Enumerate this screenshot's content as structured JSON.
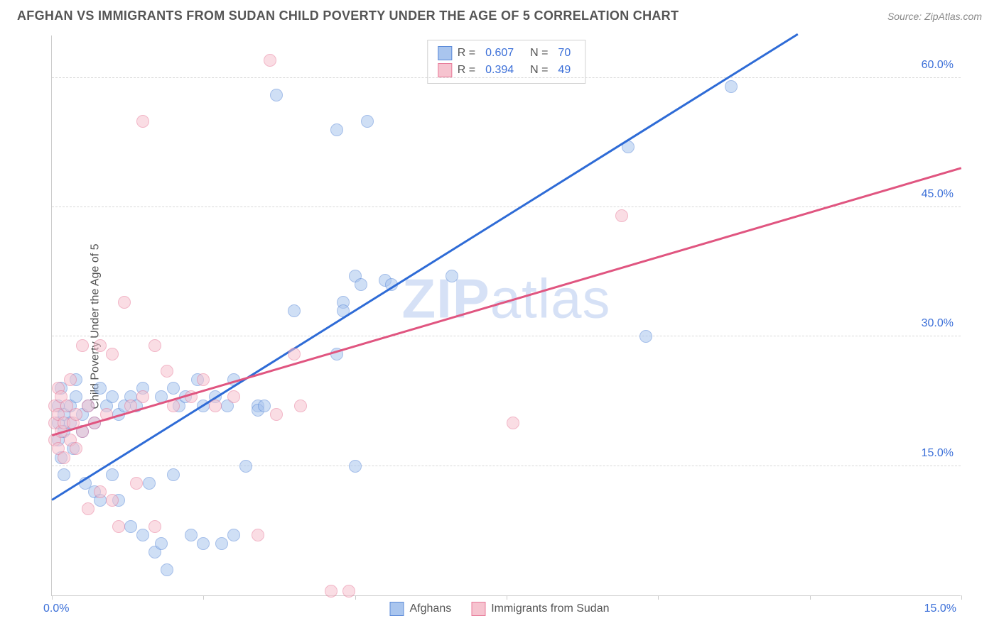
{
  "title": "AFGHAN VS IMMIGRANTS FROM SUDAN CHILD POVERTY UNDER THE AGE OF 5 CORRELATION CHART",
  "source": "Source: ZipAtlas.com",
  "ylabel": "Child Poverty Under the Age of 5",
  "watermark_bold": "ZIP",
  "watermark_light": "atlas",
  "chart": {
    "type": "scatter",
    "background_color": "#ffffff",
    "grid_color": "#d8d8d8",
    "axis_color": "#cccccc",
    "text_color": "#555555",
    "value_color": "#3b6fd8",
    "xlim": [
      0,
      15
    ],
    "ylim": [
      0,
      65
    ],
    "xticks": [
      0,
      2.5,
      5,
      7.5,
      10,
      12.5,
      15
    ],
    "xtick_labels": [
      "0.0%",
      "",
      "",
      "",
      "",
      "",
      "15.0%"
    ],
    "yticks": [
      15,
      30,
      45,
      60
    ],
    "ytick_labels": [
      "15.0%",
      "30.0%",
      "45.0%",
      "60.0%"
    ],
    "point_radius": 9,
    "point_opacity": 0.55,
    "line_width": 2.5
  },
  "series": [
    {
      "name": "Afghans",
      "fill_color": "#a9c5ee",
      "stroke_color": "#5b8ad8",
      "line_color": "#2e6bd6",
      "R": "0.607",
      "N": "70",
      "trend": {
        "x1": 0,
        "y1": 11.0,
        "x2": 12.3,
        "y2": 65.0
      },
      "points": [
        [
          0.1,
          18
        ],
        [
          0.1,
          20
        ],
        [
          0.1,
          22
        ],
        [
          0.15,
          16
        ],
        [
          0.15,
          24
        ],
        [
          0.2,
          19
        ],
        [
          0.2,
          21
        ],
        [
          0.2,
          14
        ],
        [
          0.3,
          20
        ],
        [
          0.3,
          22
        ],
        [
          0.35,
          17
        ],
        [
          0.4,
          23
        ],
        [
          0.4,
          25
        ],
        [
          0.5,
          19
        ],
        [
          0.5,
          21
        ],
        [
          0.55,
          13
        ],
        [
          0.6,
          22
        ],
        [
          0.7,
          20
        ],
        [
          0.7,
          12
        ],
        [
          0.8,
          11
        ],
        [
          0.8,
          24
        ],
        [
          0.9,
          22
        ],
        [
          1.0,
          23
        ],
        [
          1.0,
          14
        ],
        [
          1.1,
          21
        ],
        [
          1.1,
          11
        ],
        [
          1.2,
          22
        ],
        [
          1.3,
          23
        ],
        [
          1.3,
          8
        ],
        [
          1.4,
          22
        ],
        [
          1.5,
          24
        ],
        [
          1.5,
          7
        ],
        [
          1.6,
          13
        ],
        [
          1.7,
          5
        ],
        [
          1.8,
          23
        ],
        [
          1.8,
          6
        ],
        [
          1.9,
          3
        ],
        [
          2.0,
          24
        ],
        [
          2.0,
          14
        ],
        [
          2.1,
          22
        ],
        [
          2.2,
          23
        ],
        [
          2.3,
          7
        ],
        [
          2.4,
          25
        ],
        [
          2.5,
          22
        ],
        [
          2.5,
          6
        ],
        [
          2.7,
          23
        ],
        [
          2.8,
          6
        ],
        [
          2.9,
          22
        ],
        [
          3.0,
          25
        ],
        [
          3.0,
          7
        ],
        [
          3.2,
          15
        ],
        [
          3.4,
          22
        ],
        [
          3.4,
          21.5
        ],
        [
          3.5,
          22
        ],
        [
          3.7,
          58
        ],
        [
          4.0,
          33
        ],
        [
          4.7,
          28
        ],
        [
          4.7,
          54
        ],
        [
          4.8,
          34
        ],
        [
          4.8,
          33
        ],
        [
          5.0,
          15
        ],
        [
          5.0,
          37
        ],
        [
          5.1,
          36
        ],
        [
          5.2,
          55
        ],
        [
          5.5,
          36.5
        ],
        [
          5.6,
          36
        ],
        [
          6.6,
          37
        ],
        [
          9.5,
          52
        ],
        [
          9.8,
          30
        ],
        [
          11.2,
          59
        ]
      ]
    },
    {
      "name": "Immigrants from Sudan",
      "fill_color": "#f6c3cf",
      "stroke_color": "#e87b9a",
      "line_color": "#e05580",
      "R": "0.394",
      "N": "49",
      "trend": {
        "x1": 0,
        "y1": 18.5,
        "x2": 15.0,
        "y2": 49.5
      },
      "points": [
        [
          0.05,
          18
        ],
        [
          0.05,
          20
        ],
        [
          0.05,
          22
        ],
        [
          0.1,
          24
        ],
        [
          0.1,
          17
        ],
        [
          0.1,
          21
        ],
        [
          0.15,
          19
        ],
        [
          0.15,
          23
        ],
        [
          0.2,
          20
        ],
        [
          0.2,
          16
        ],
        [
          0.25,
          22
        ],
        [
          0.3,
          18
        ],
        [
          0.3,
          25
        ],
        [
          0.35,
          20
        ],
        [
          0.4,
          21
        ],
        [
          0.4,
          17
        ],
        [
          0.5,
          29
        ],
        [
          0.5,
          19
        ],
        [
          0.6,
          22
        ],
        [
          0.6,
          10
        ],
        [
          0.7,
          20
        ],
        [
          0.8,
          29
        ],
        [
          0.8,
          12
        ],
        [
          0.9,
          21
        ],
        [
          1.0,
          28
        ],
        [
          1.0,
          11
        ],
        [
          1.1,
          8
        ],
        [
          1.2,
          34
        ],
        [
          1.3,
          22
        ],
        [
          1.4,
          13
        ],
        [
          1.5,
          23
        ],
        [
          1.5,
          55
        ],
        [
          1.7,
          29
        ],
        [
          1.7,
          8
        ],
        [
          1.9,
          26
        ],
        [
          2.0,
          22
        ],
        [
          2.3,
          23
        ],
        [
          2.5,
          25
        ],
        [
          2.7,
          22
        ],
        [
          3.0,
          23
        ],
        [
          3.4,
          7
        ],
        [
          3.6,
          62
        ],
        [
          3.7,
          21
        ],
        [
          4.0,
          28
        ],
        [
          4.1,
          22
        ],
        [
          4.6,
          0.5
        ],
        [
          4.9,
          0.5
        ],
        [
          7.6,
          20
        ],
        [
          9.4,
          44
        ]
      ]
    }
  ],
  "legend_bottom": [
    {
      "label": "Afghans",
      "fill": "#a9c5ee",
      "stroke": "#5b8ad8"
    },
    {
      "label": "Immigrants from Sudan",
      "fill": "#f6c3cf",
      "stroke": "#e87b9a"
    }
  ]
}
